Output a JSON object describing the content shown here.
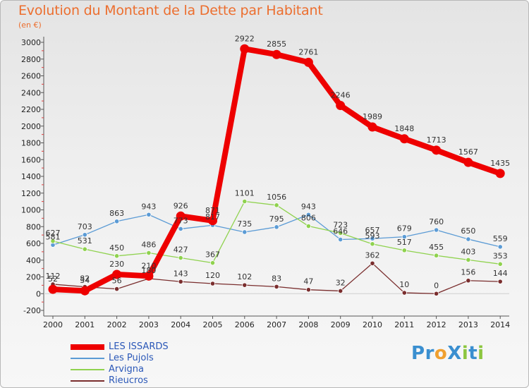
{
  "title": "Evolution du Montant de la Dette par Habitant",
  "subtitle": "(en €)",
  "logo": {
    "text": "ProXiti",
    "letters": [
      {
        "ch": "P",
        "color": "#3a8fd0"
      },
      {
        "ch": "r",
        "color": "#3a8fd0"
      },
      {
        "ch": "o",
        "color": "#f0a030"
      },
      {
        "ch": "X",
        "color": "#3a8fd0"
      },
      {
        "ch": "i",
        "color": "#8cc63f"
      },
      {
        "ch": "t",
        "color": "#3a8fd0"
      },
      {
        "ch": "i",
        "color": "#8cc63f"
      }
    ]
  },
  "chart_data": {
    "type": "line",
    "title": "Evolution du Montant de la Dette par Habitant",
    "subtitle": "(en €)",
    "xlabel": "",
    "ylabel": "",
    "x": [
      "2000",
      "2001",
      "2002",
      "2003",
      "2004",
      "2005",
      "2006",
      "2007",
      "2008",
      "2009",
      "2010",
      "2011",
      "2012",
      "2013",
      "2014"
    ],
    "ylim": [
      -200,
      3000
    ],
    "yticks": [
      -200,
      0,
      200,
      400,
      600,
      800,
      1000,
      1200,
      1400,
      1600,
      1800,
      2000,
      2200,
      2400,
      2600,
      2800,
      3000
    ],
    "grid": false,
    "legend_position": "bottom-left",
    "series": [
      {
        "name": "LES ISSARDS",
        "color": "#ee0000",
        "emphasis": true,
        "values": [
          52,
          34,
          230,
          210,
          926,
          871,
          2922,
          2855,
          2761,
          2246,
          1989,
          1848,
          1713,
          1567,
          1435
        ],
        "labels": [
          "52",
          "34",
          "230",
          "210",
          "926",
          "871",
          "2922",
          "2855",
          "2761",
          "2246",
          "1989",
          "1848",
          "1713",
          "1567",
          "1435"
        ]
      },
      {
        "name": "Les Pujols",
        "color": "#5b9bd5",
        "emphasis": false,
        "values": [
          581,
          703,
          863,
          943,
          773,
          817,
          735,
          795,
          943,
          646,
          657,
          679,
          760,
          650,
          559
        ],
        "labels": [
          "581",
          "703",
          "863",
          "943",
          "773",
          "817",
          "735",
          "795",
          "943",
          "646",
          "657",
          "679",
          "760",
          "650",
          "559"
        ]
      },
      {
        "name": "Arvigna",
        "color": "#8fd24e",
        "emphasis": false,
        "values": [
          627,
          531,
          450,
          486,
          427,
          367,
          1101,
          1056,
          806,
          723,
          593,
          517,
          455,
          403,
          353
        ],
        "labels": [
          "627",
          "531",
          "450",
          "486",
          "427",
          "367",
          "1101",
          "1056",
          "806",
          "723",
          "593",
          "517",
          "455",
          "403",
          "353"
        ]
      },
      {
        "name": "Rieucros",
        "color": "#7a2e2e",
        "emphasis": false,
        "values": [
          112,
          82,
          56,
          180,
          143,
          120,
          102,
          83,
          47,
          32,
          362,
          10,
          0,
          156,
          144
        ],
        "labels": [
          "112",
          "82",
          "56",
          "180",
          "143",
          "120",
          "102",
          "83",
          "47",
          "32",
          "362",
          "10",
          "0",
          "156",
          "144"
        ]
      }
    ]
  }
}
